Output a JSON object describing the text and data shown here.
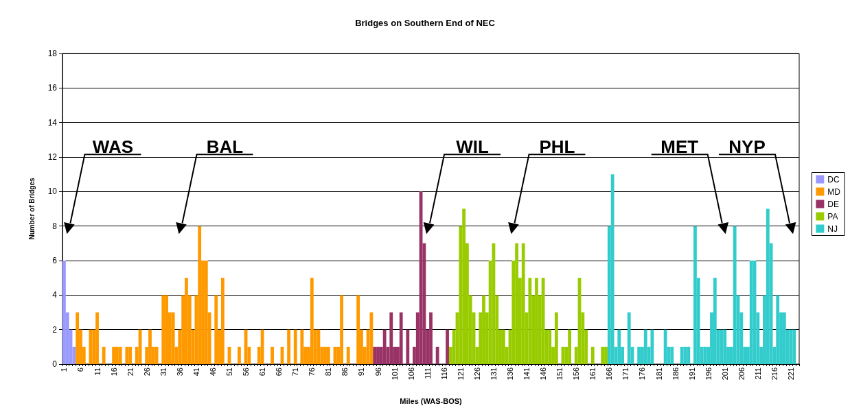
{
  "chart_data": {
    "type": "bar",
    "title": "Bridges on Southern End of NEC",
    "xlabel": "Miles (WAS-BOS)",
    "ylabel": "Number of Bridges",
    "categories": [
      "1",
      null,
      null,
      null,
      null,
      "6",
      null,
      null,
      null,
      null,
      "11",
      null,
      null,
      null,
      null,
      "16",
      null,
      null,
      null,
      null,
      "21",
      null,
      null,
      null,
      null,
      "26",
      null,
      null,
      null,
      null,
      "31",
      null,
      null,
      null,
      null,
      "36",
      null,
      null,
      null,
      null,
      "41",
      null,
      null,
      null,
      null,
      "46",
      null,
      null,
      null,
      null,
      "51",
      null,
      null,
      null,
      null,
      "56",
      null,
      null,
      null,
      null,
      "61",
      null,
      null,
      null,
      null,
      "66",
      null,
      null,
      null,
      null,
      "71",
      null,
      null,
      null,
      null,
      "76",
      null,
      null,
      null,
      null,
      "81",
      null,
      null,
      null,
      null,
      "86",
      null,
      null,
      null,
      null,
      "91",
      null,
      null,
      null,
      null,
      "96",
      null,
      null,
      null,
      null,
      "101",
      null,
      null,
      null,
      null,
      "106",
      null,
      null,
      null,
      null,
      "111",
      null,
      null,
      null,
      null,
      "116",
      null,
      null,
      null,
      null,
      "121",
      null,
      null,
      null,
      null,
      "126",
      null,
      null,
      null,
      null,
      "131",
      null,
      null,
      null,
      null,
      "136",
      null,
      null,
      null,
      null,
      "141",
      null,
      null,
      null,
      null,
      "146",
      null,
      null,
      null,
      null,
      "151",
      null,
      null,
      null,
      null,
      "156",
      null,
      null,
      null,
      null,
      "161",
      null,
      null,
      null,
      null,
      "166",
      null,
      null,
      null,
      null,
      "171",
      null,
      null,
      null,
      null,
      "176",
      null,
      null,
      null,
      null,
      "181",
      null,
      null,
      null,
      null,
      "186",
      null,
      null,
      null,
      null,
      "191",
      null,
      null,
      null,
      null,
      "196",
      null,
      null,
      null,
      null,
      "201",
      null,
      null,
      null,
      null,
      "206",
      null,
      null,
      null,
      null,
      "211",
      null,
      null,
      null,
      null,
      "216",
      null,
      null,
      null,
      null,
      "221",
      null,
      null
    ],
    "series": [
      {
        "name": "DC",
        "color": "#9999ff",
        "values": [
          6,
          3,
          2,
          1,
          null,
          null,
          null,
          null,
          null,
          null,
          null,
          null,
          null,
          null,
          null,
          null,
          null,
          null,
          null,
          null,
          null,
          null,
          null,
          null,
          null,
          null,
          null,
          null,
          null,
          null,
          null,
          null,
          null,
          null,
          null,
          null,
          null,
          null,
          null,
          null,
          null,
          null,
          null,
          null,
          null,
          null,
          null,
          null,
          null,
          null,
          null,
          null,
          null,
          null,
          null,
          null,
          null,
          null,
          null,
          null,
          null,
          null,
          null,
          null,
          null,
          null,
          null,
          null,
          null,
          null,
          null,
          null,
          null,
          null,
          null,
          null,
          null,
          null,
          null,
          null,
          null,
          null,
          null,
          null,
          null,
          null,
          null,
          null,
          null,
          null,
          null,
          null,
          null,
          null,
          null,
          null,
          null,
          null,
          null,
          null,
          null,
          null,
          null,
          null,
          null,
          null,
          null,
          null,
          null,
          null,
          null,
          null,
          null,
          null,
          null,
          null,
          null,
          null,
          null,
          null,
          null,
          null,
          null,
          null,
          null,
          null,
          null,
          null,
          null,
          null,
          null,
          null,
          null,
          null,
          null,
          null,
          null,
          null,
          null,
          null,
          null,
          null,
          null,
          null,
          null,
          null,
          null,
          null,
          null,
          null,
          null,
          null,
          null,
          null,
          null,
          null,
          null,
          null,
          null,
          null,
          null,
          null,
          null,
          null,
          null,
          null,
          null,
          null,
          null,
          null,
          null,
          null,
          null,
          null,
          null,
          null,
          null,
          null,
          null,
          null,
          null,
          null,
          null,
          null,
          null,
          null,
          null,
          null,
          null,
          null,
          null,
          null,
          null,
          null,
          null,
          null,
          null,
          null,
          null,
          null,
          null,
          null,
          null,
          null,
          null,
          null,
          null,
          null,
          null,
          null,
          null,
          null,
          null,
          null,
          null,
          null,
          null,
          null,
          null,
          null,
          null,
          null,
          null
        ]
      },
      {
        "name": "MD",
        "color": "#ff9900",
        "values": [
          null,
          null,
          null,
          null,
          3,
          2,
          1,
          0,
          2,
          2,
          3,
          0,
          1,
          0,
          0,
          1,
          1,
          1,
          0,
          1,
          1,
          0,
          1,
          2,
          0,
          1,
          2,
          1,
          1,
          0,
          4,
          4,
          3,
          3,
          1,
          2,
          4,
          5,
          4,
          2,
          4,
          8,
          6,
          6,
          3,
          0,
          4,
          2,
          5,
          0,
          1,
          0,
          0,
          1,
          0,
          2,
          1,
          0,
          0,
          1,
          2,
          0,
          0,
          1,
          0,
          0,
          1,
          0,
          2,
          0,
          2,
          0,
          2,
          1,
          1,
          5,
          2,
          2,
          1,
          1,
          1,
          0,
          1,
          1,
          4,
          0,
          1,
          0,
          0,
          4,
          2,
          1,
          2,
          3,
          null,
          null,
          null,
          null,
          null,
          null,
          null,
          null,
          null,
          null,
          null,
          null,
          null,
          null,
          null,
          null,
          null,
          null,
          null,
          null,
          null,
          null,
          null,
          null,
          null,
          null,
          null,
          null,
          null,
          null,
          null,
          null,
          null,
          null,
          null,
          null,
          null,
          null,
          null,
          null,
          null,
          null,
          null,
          null,
          null,
          null,
          null,
          null,
          null,
          null,
          null,
          null,
          null,
          null,
          null,
          null,
          null,
          null,
          null,
          null,
          null,
          null,
          null,
          null,
          null,
          null,
          null,
          null,
          null,
          null,
          null,
          null,
          null,
          null,
          null,
          null,
          null,
          null,
          null,
          null,
          null,
          null,
          null,
          null,
          null,
          null,
          null,
          null,
          null,
          null,
          null,
          null,
          null,
          null,
          null,
          null,
          null,
          null,
          null,
          null,
          null,
          null,
          null,
          null,
          null,
          null,
          null,
          null,
          null,
          null,
          null,
          null,
          null,
          null,
          null,
          null,
          null,
          null,
          null,
          null,
          null,
          null,
          null,
          null,
          null,
          null,
          null,
          null,
          null
        ]
      },
      {
        "name": "DE",
        "color": "#993366",
        "values": [
          null,
          null,
          null,
          null,
          null,
          null,
          null,
          null,
          null,
          null,
          null,
          null,
          null,
          null,
          null,
          null,
          null,
          null,
          null,
          null,
          null,
          null,
          null,
          null,
          null,
          null,
          null,
          null,
          null,
          null,
          null,
          null,
          null,
          null,
          null,
          null,
          null,
          null,
          null,
          null,
          null,
          null,
          null,
          null,
          null,
          null,
          null,
          null,
          null,
          null,
          null,
          null,
          null,
          null,
          null,
          null,
          null,
          null,
          null,
          null,
          null,
          null,
          null,
          null,
          null,
          null,
          null,
          null,
          null,
          null,
          null,
          null,
          null,
          null,
          null,
          null,
          null,
          null,
          null,
          null,
          null,
          null,
          null,
          null,
          null,
          null,
          null,
          null,
          null,
          null,
          null,
          null,
          null,
          null,
          1,
          1,
          1,
          2,
          1,
          3,
          1,
          1,
          3,
          0,
          2,
          0,
          1,
          3,
          10,
          7,
          2,
          3,
          0,
          1,
          0,
          0,
          2,
          null,
          null,
          null,
          null,
          null,
          null,
          null,
          null,
          null,
          null,
          null,
          null,
          null,
          null,
          null,
          null,
          null,
          null,
          null,
          null,
          null,
          null,
          null,
          null,
          null,
          null,
          null,
          null,
          null,
          null,
          null,
          null,
          null,
          null,
          null,
          null,
          null,
          null,
          null,
          null,
          null,
          null,
          null,
          null,
          null,
          null,
          null,
          null,
          null,
          null,
          null,
          null,
          null,
          null,
          null,
          null,
          null,
          null,
          null,
          null,
          null,
          null,
          null,
          null,
          null,
          null,
          null,
          null,
          null,
          null,
          null,
          null,
          null,
          null,
          null,
          null,
          null,
          null,
          null,
          null,
          null,
          null,
          null,
          null,
          null,
          null,
          null,
          null,
          null,
          null,
          null,
          null,
          null,
          null,
          null,
          null,
          null,
          null,
          null,
          null,
          null,
          null,
          null,
          null,
          null,
          null
        ]
      },
      {
        "name": "PA",
        "color": "#99cc00",
        "values": [
          null,
          null,
          null,
          null,
          null,
          null,
          null,
          null,
          null,
          null,
          null,
          null,
          null,
          null,
          null,
          null,
          null,
          null,
          null,
          null,
          null,
          null,
          null,
          null,
          null,
          null,
          null,
          null,
          null,
          null,
          null,
          null,
          null,
          null,
          null,
          null,
          null,
          null,
          null,
          null,
          null,
          null,
          null,
          null,
          null,
          null,
          null,
          null,
          null,
          null,
          null,
          null,
          null,
          null,
          null,
          null,
          null,
          null,
          null,
          null,
          null,
          null,
          null,
          null,
          null,
          null,
          null,
          null,
          null,
          null,
          null,
          null,
          null,
          null,
          null,
          null,
          null,
          null,
          null,
          null,
          null,
          null,
          null,
          null,
          null,
          null,
          null,
          null,
          null,
          null,
          null,
          null,
          null,
          null,
          null,
          null,
          null,
          null,
          null,
          null,
          null,
          null,
          null,
          null,
          null,
          null,
          null,
          null,
          null,
          null,
          null,
          null,
          null,
          null,
          null,
          null,
          null,
          1,
          2,
          3,
          8,
          9,
          7,
          4,
          3,
          1,
          3,
          4,
          3,
          6,
          7,
          4,
          2,
          2,
          1,
          2,
          6,
          7,
          5,
          7,
          3,
          5,
          4,
          5,
          4,
          5,
          2,
          2,
          1,
          3,
          0,
          1,
          1,
          2,
          0,
          1,
          5,
          3,
          2,
          0,
          1,
          0,
          0,
          1,
          1,
          null,
          null,
          null,
          null,
          null,
          null,
          null,
          null,
          null,
          null,
          null,
          null,
          null,
          null,
          null,
          null,
          null,
          null,
          null,
          null,
          null,
          null,
          null,
          null,
          null,
          null,
          null,
          null,
          null,
          null,
          null,
          null,
          null,
          null,
          null,
          null,
          null,
          null,
          null,
          null,
          null,
          null,
          null,
          null,
          null,
          null,
          null,
          null,
          null,
          null,
          null,
          null,
          null,
          null,
          null,
          null,
          null,
          null
        ]
      },
      {
        "name": "NJ",
        "color": "#33cccc",
        "values": [
          null,
          null,
          null,
          null,
          null,
          null,
          null,
          null,
          null,
          null,
          null,
          null,
          null,
          null,
          null,
          null,
          null,
          null,
          null,
          null,
          null,
          null,
          null,
          null,
          null,
          null,
          null,
          null,
          null,
          null,
          null,
          null,
          null,
          null,
          null,
          null,
          null,
          null,
          null,
          null,
          null,
          null,
          null,
          null,
          null,
          null,
          null,
          null,
          null,
          null,
          null,
          null,
          null,
          null,
          null,
          null,
          null,
          null,
          null,
          null,
          null,
          null,
          null,
          null,
          null,
          null,
          null,
          null,
          null,
          null,
          null,
          null,
          null,
          null,
          null,
          null,
          null,
          null,
          null,
          null,
          null,
          null,
          null,
          null,
          null,
          null,
          null,
          null,
          null,
          null,
          null,
          null,
          null,
          null,
          null,
          null,
          null,
          null,
          null,
          null,
          null,
          null,
          null,
          null,
          null,
          null,
          null,
          null,
          null,
          null,
          null,
          null,
          null,
          null,
          null,
          null,
          null,
          null,
          null,
          null,
          null,
          null,
          null,
          null,
          null,
          null,
          null,
          null,
          null,
          null,
          null,
          null,
          null,
          null,
          null,
          null,
          null,
          null,
          null,
          null,
          null,
          null,
          null,
          null,
          null,
          null,
          null,
          null,
          null,
          null,
          null,
          null,
          null,
          null,
          null,
          null,
          null,
          null,
          null,
          null,
          null,
          null,
          null,
          null,
          null,
          8,
          11,
          1,
          2,
          1,
          0,
          3,
          1,
          0,
          1,
          1,
          2,
          1,
          2,
          0,
          0,
          0,
          2,
          1,
          1,
          0,
          0,
          1,
          1,
          1,
          0,
          8,
          5,
          1,
          1,
          1,
          3,
          5,
          2,
          2,
          2,
          1,
          1,
          8,
          4,
          3,
          1,
          1,
          6,
          6,
          3,
          1,
          4,
          9,
          7,
          1,
          4,
          3,
          3,
          2,
          2,
          2,
          0
        ]
      }
    ],
    "ylim": [
      0,
      18
    ],
    "yticks": [
      0,
      2,
      4,
      6,
      8,
      10,
      12,
      14,
      16,
      18
    ],
    "grid": "y",
    "legend": "right",
    "annotations": [
      "WAS",
      "BAL",
      "WIL",
      "PHL",
      "MET",
      "NYP"
    ]
  }
}
